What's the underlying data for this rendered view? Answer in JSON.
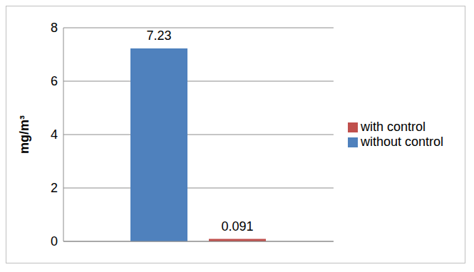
{
  "chart_data": {
    "type": "bar",
    "categories": [
      null
    ],
    "series": [
      {
        "name": "without control",
        "color": "#4f81bd",
        "values": [
          7.23
        ]
      },
      {
        "name": "with control",
        "color": "#c0504d",
        "values": [
          0.091
        ]
      }
    ],
    "y_label": "mg/m³",
    "ylim": [
      0,
      8
    ],
    "yticks": [
      0,
      2,
      4,
      6,
      8
    ],
    "grid": true,
    "legend": "right",
    "data_labels": true
  }
}
